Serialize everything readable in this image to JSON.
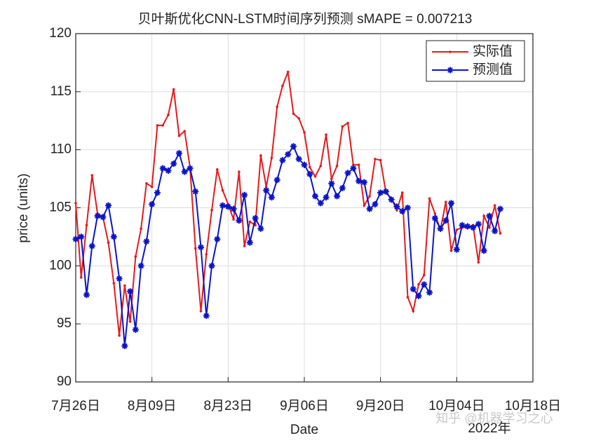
{
  "chart_data": {
    "type": "line",
    "title": "贝叶斯优化CNN-LSTM时间序列预测 sMAPE = 0.007213",
    "x_label": "Date",
    "x_label_year": "2022年",
    "y_label": "price (units)",
    "watermark": "知乎 @机器学习之心",
    "x": [
      "2022-07-26",
      "2022-07-27",
      "2022-07-28",
      "2022-07-29",
      "2022-07-30",
      "2022-07-31",
      "2022-08-01",
      "2022-08-02",
      "2022-08-03",
      "2022-08-04",
      "2022-08-05",
      "2022-08-06",
      "2022-08-07",
      "2022-08-08",
      "2022-08-09",
      "2022-08-10",
      "2022-08-11",
      "2022-08-12",
      "2022-08-13",
      "2022-08-14",
      "2022-08-15",
      "2022-08-16",
      "2022-08-17",
      "2022-08-18",
      "2022-08-19",
      "2022-08-20",
      "2022-08-21",
      "2022-08-22",
      "2022-08-23",
      "2022-08-24",
      "2022-08-25",
      "2022-08-26",
      "2022-08-27",
      "2022-08-28",
      "2022-08-29",
      "2022-08-30",
      "2022-08-31",
      "2022-09-01",
      "2022-09-02",
      "2022-09-03",
      "2022-09-04",
      "2022-09-05",
      "2022-09-06",
      "2022-09-07",
      "2022-09-08",
      "2022-09-09",
      "2022-09-10",
      "2022-09-11",
      "2022-09-12",
      "2022-09-13",
      "2022-09-14",
      "2022-09-15",
      "2022-09-16",
      "2022-09-17",
      "2022-09-18",
      "2022-09-19",
      "2022-09-20",
      "2022-09-21",
      "2022-09-22",
      "2022-09-23",
      "2022-09-24",
      "2022-09-25",
      "2022-09-26",
      "2022-09-27",
      "2022-09-28",
      "2022-09-29",
      "2022-09-30",
      "2022-10-01",
      "2022-10-02",
      "2022-10-03",
      "2022-10-04",
      "2022-10-05",
      "2022-10-06",
      "2022-10-07",
      "2022-10-08",
      "2022-10-09",
      "2022-10-10",
      "2022-10-11",
      "2022-10-12"
    ],
    "series": [
      {
        "name": "实际值",
        "color": "#e41a1c",
        "marker": "point",
        "values": [
          105.4,
          99,
          103.5,
          107.8,
          104.5,
          104.2,
          102,
          98.5,
          94,
          98.3,
          95.2,
          100.8,
          103.2,
          107.1,
          106.8,
          112.1,
          112.1,
          113,
          115.2,
          111.2,
          111.6,
          108.5,
          101.5,
          96.1,
          101,
          104.8,
          108.3,
          106.5,
          105.3,
          104,
          108.1,
          101.7,
          103.8,
          103.5,
          109.5,
          106.8,
          109.3,
          113.7,
          115.5,
          116.7,
          113.1,
          112.7,
          111.5,
          108.5,
          107.7,
          108.6,
          111.3,
          107.5,
          108.6,
          112,
          112.3,
          108.7,
          108.7,
          105.2,
          106,
          109.2,
          109.1,
          106.3,
          105.8,
          104.8,
          106.3,
          97.3,
          96.1,
          98.4,
          99.2,
          105.8,
          104.5,
          103.1,
          105.5,
          101.3,
          103.1,
          103.3,
          103.3,
          103.5,
          100.3,
          104.3,
          103.3,
          105.2,
          102.8
        ]
      },
      {
        "name": "预测值",
        "color": "#0a14c8",
        "marker": "asterisk",
        "values": [
          102.3,
          102.5,
          97.5,
          101.7,
          104.3,
          104.2,
          105.2,
          102.5,
          98.9,
          93.1,
          97.8,
          94.5,
          100,
          102.1,
          105.3,
          106.3,
          108.4,
          108.2,
          108.8,
          109.7,
          108.1,
          108.4,
          106.4,
          101.6,
          95.7,
          100,
          102.3,
          105.2,
          105.1,
          104.9,
          103.9,
          106.1,
          102,
          104.1,
          103.2,
          106.5,
          105.9,
          107.4,
          109.1,
          109.6,
          110.3,
          109.2,
          108.7,
          107.9,
          106,
          105.4,
          105.9,
          107.1,
          106,
          106.7,
          108,
          108.4,
          107.3,
          107.2,
          104.9,
          105.3,
          106.3,
          106.4,
          105.7,
          105.1,
          104.7,
          105,
          98,
          97.4,
          98.4,
          97.7,
          104.1,
          103.2,
          103.9,
          105.4,
          101.4,
          103.5,
          103.4,
          103.3,
          103.6,
          101.3,
          104.3,
          103,
          104.9
        ]
      }
    ],
    "xlim": [
      "2022-07-26",
      "2022-10-18"
    ],
    "xticks": [
      {
        "value": "2022-07-26",
        "label": "7月26日"
      },
      {
        "value": "2022-08-09",
        "label": "8月09日"
      },
      {
        "value": "2022-08-23",
        "label": "8月23日"
      },
      {
        "value": "2022-09-06",
        "label": "9月06日"
      },
      {
        "value": "2022-09-20",
        "label": "9月20日"
      },
      {
        "value": "2022-10-04",
        "label": "10月04日"
      },
      {
        "value": "2022-10-18",
        "label": "10月18日"
      }
    ],
    "ylim": [
      90,
      120
    ],
    "yticks": [
      90,
      95,
      100,
      105,
      110,
      115,
      120
    ],
    "grid": true,
    "legend": "northeast"
  }
}
